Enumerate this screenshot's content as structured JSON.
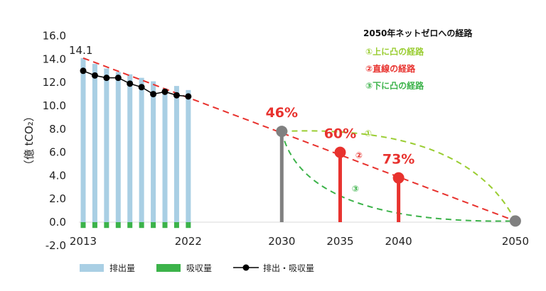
{
  "chart_data": {
    "type": "bar",
    "ylabel": "（億 tCO₂）",
    "ylim": [
      -2.0,
      16.0
    ],
    "ytick_step": 2.0,
    "y_ticks": [
      "-2.0",
      "0.0",
      "2.0",
      "4.0",
      "6.0",
      "8.0",
      "10.0",
      "12.0",
      "14.0",
      "16.0"
    ],
    "x_tick_labels": [
      "2013",
      "2022",
      "2030",
      "2035",
      "2040",
      "2050"
    ],
    "start_annotation": "14.1",
    "emissions": {
      "name": "排出量",
      "years": [
        2013,
        2014,
        2015,
        2016,
        2017,
        2018,
        2019,
        2020,
        2021,
        2022
      ],
      "values": [
        14.1,
        13.6,
        13.2,
        12.9,
        12.7,
        12.4,
        12.1,
        11.5,
        11.7,
        11.35
      ]
    },
    "absorption": {
      "name": "吸収量",
      "years": [
        2013,
        2014,
        2015,
        2016,
        2017,
        2018,
        2019,
        2020,
        2021,
        2022
      ],
      "values": [
        -0.5,
        -0.5,
        -0.5,
        -0.5,
        -0.5,
        -0.5,
        -0.5,
        -0.5,
        -0.5,
        -0.5
      ]
    },
    "net": {
      "name": "排出・吸収量",
      "years": [
        2013,
        2014,
        2015,
        2016,
        2017,
        2018,
        2019,
        2020,
        2021,
        2022
      ],
      "values": [
        13.0,
        12.6,
        12.4,
        12.4,
        11.9,
        11.6,
        11.0,
        11.2,
        10.9,
        10.8
      ]
    },
    "targets": [
      {
        "year": 2030,
        "value": 7.8,
        "label": "46%",
        "color": "#808080"
      },
      {
        "year": 2035,
        "value": 6.0,
        "label": "60%",
        "color": "#e8322e"
      },
      {
        "year": 2040,
        "value": 3.8,
        "label": "73%",
        "color": "#e8322e"
      }
    ],
    "endpoint": {
      "year": 2050,
      "value": 0.1,
      "color": "#808080"
    },
    "pathways": {
      "title": "2050年ネットゼロへの経路",
      "upper": {
        "label": "①上に凸の経路",
        "marker": "①",
        "color": "#9acd32"
      },
      "linear": {
        "label": "②直線の経路",
        "marker": "②",
        "color": "#e8322e"
      },
      "lower": {
        "label": "③下に凸の経路",
        "marker": "③",
        "color": "#3cb34a"
      }
    },
    "colors": {
      "emissions": "#a9cfe4",
      "absorption": "#3cb34a",
      "net": "#000000"
    }
  }
}
